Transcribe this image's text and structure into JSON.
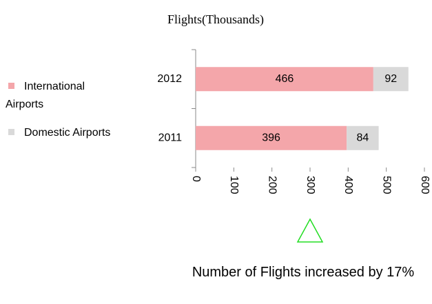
{
  "chart_data": {
    "type": "stacked_hbar",
    "title": "Flights(Thousands)",
    "categories": [
      "2012",
      "2011"
    ],
    "series": [
      {
        "name": "International Airports",
        "color": "#f4a6aa",
        "values": [
          466,
          396
        ]
      },
      {
        "name": "Domestic Airports",
        "color": "#d9d9d9",
        "values": [
          92,
          84
        ]
      }
    ],
    "xlim": [
      0,
      600
    ],
    "xticks": [
      0,
      100,
      200,
      300,
      400,
      500,
      600
    ],
    "legend": "left",
    "annotation": "Number of Flights increased by 17%"
  }
}
